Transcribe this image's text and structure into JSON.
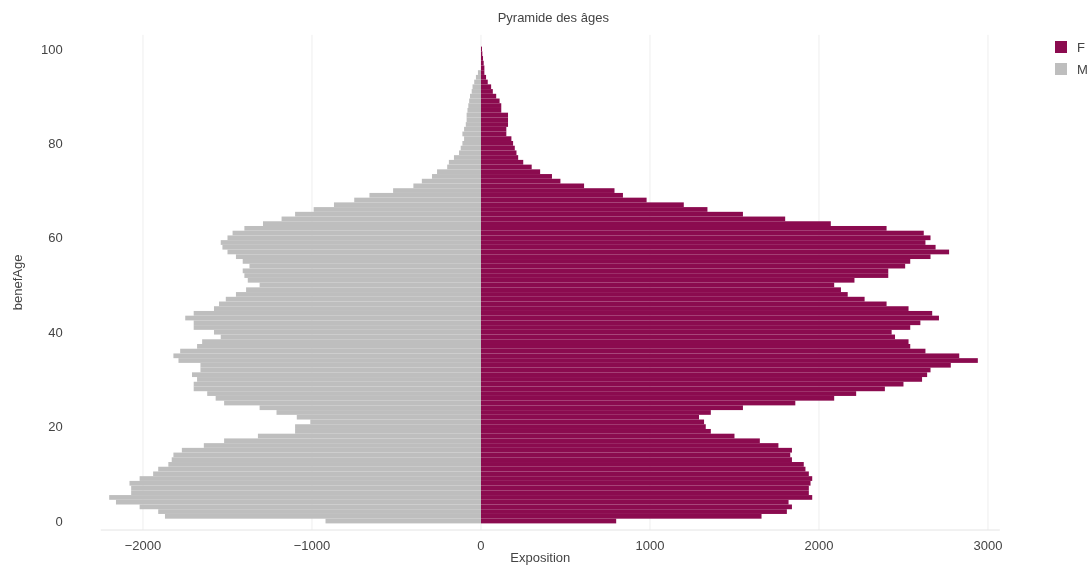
{
  "chart_data": {
    "type": "bar",
    "orientation": "horizontal",
    "title": "Pyramide des âges",
    "xlabel": "Exposition",
    "ylabel": "benefAge",
    "x": [
      0,
      1,
      2,
      3,
      4,
      5,
      6,
      7,
      8,
      9,
      10,
      11,
      12,
      13,
      14,
      15,
      16,
      17,
      18,
      19,
      20,
      21,
      22,
      23,
      24,
      25,
      26,
      27,
      28,
      29,
      30,
      31,
      32,
      33,
      34,
      35,
      36,
      37,
      38,
      39,
      40,
      41,
      42,
      43,
      44,
      45,
      46,
      47,
      48,
      49,
      50,
      51,
      52,
      53,
      54,
      55,
      56,
      57,
      58,
      59,
      60,
      61,
      62,
      63,
      64,
      65,
      66,
      67,
      68,
      69,
      70,
      71,
      72,
      73,
      74,
      75,
      76,
      77,
      78,
      79,
      80,
      81,
      82,
      83,
      84,
      85,
      86,
      87,
      88,
      89,
      90,
      91,
      92,
      93,
      94,
      95,
      96,
      97,
      98,
      99,
      100
    ],
    "series": [
      {
        "name": "F",
        "color": "#8b0b4f",
        "values": [
          800,
          1660,
          1810,
          1840,
          1820,
          1960,
          1940,
          1940,
          1950,
          1960,
          1940,
          1920,
          1910,
          1840,
          1830,
          1840,
          1760,
          1650,
          1500,
          1360,
          1330,
          1320,
          1290,
          1360,
          1550,
          1860,
          2090,
          2220,
          2390,
          2500,
          2610,
          2640,
          2660,
          2780,
          2940,
          2830,
          2630,
          2540,
          2530,
          2450,
          2430,
          2540,
          2600,
          2710,
          2670,
          2530,
          2400,
          2270,
          2170,
          2130,
          2090,
          2210,
          2410,
          2410,
          2510,
          2540,
          2660,
          2770,
          2690,
          2630,
          2660,
          2620,
          2400,
          2070,
          1800,
          1550,
          1340,
          1200,
          980,
          840,
          790,
          610,
          470,
          420,
          350,
          300,
          250,
          220,
          210,
          200,
          190,
          180,
          150,
          150,
          160,
          160,
          160,
          120,
          120,
          110,
          90,
          70,
          60,
          40,
          30,
          20,
          20,
          16,
          12,
          8,
          6
        ]
      },
      {
        "name": "M",
        "color": "#bebebe",
        "values": [
          -920,
          -1870,
          -1910,
          -2020,
          -2160,
          -2200,
          -2070,
          -2070,
          -2080,
          -2020,
          -1940,
          -1910,
          -1850,
          -1830,
          -1820,
          -1770,
          -1640,
          -1520,
          -1320,
          -1100,
          -1100,
          -1010,
          -1090,
          -1210,
          -1310,
          -1520,
          -1570,
          -1620,
          -1700,
          -1700,
          -1680,
          -1710,
          -1660,
          -1660,
          -1790,
          -1820,
          -1780,
          -1680,
          -1650,
          -1540,
          -1580,
          -1700,
          -1700,
          -1750,
          -1700,
          -1580,
          -1550,
          -1510,
          -1450,
          -1390,
          -1310,
          -1380,
          -1400,
          -1410,
          -1370,
          -1410,
          -1450,
          -1500,
          -1530,
          -1540,
          -1500,
          -1470,
          -1400,
          -1290,
          -1180,
          -1100,
          -990,
          -870,
          -750,
          -660,
          -520,
          -400,
          -350,
          -290,
          -260,
          -200,
          -190,
          -160,
          -130,
          -120,
          -110,
          -100,
          -110,
          -100,
          -90,
          -85,
          -85,
          -80,
          -75,
          -70,
          -65,
          -55,
          -50,
          -40,
          -30,
          -18,
          null,
          null,
          null,
          null,
          null
        ]
      }
    ],
    "xlim": [
      -2250,
      3070
    ],
    "xticks": [
      {
        "value": -2000,
        "label": "−2000"
      },
      {
        "value": -1000,
        "label": "−1000"
      },
      0,
      1000,
      2000,
      3000
    ],
    "ylim": [
      -1.9,
      103
    ],
    "yticks": [
      0,
      20,
      40,
      60,
      80,
      100
    ],
    "stacked": true,
    "grid": "x",
    "legend": "top right"
  }
}
